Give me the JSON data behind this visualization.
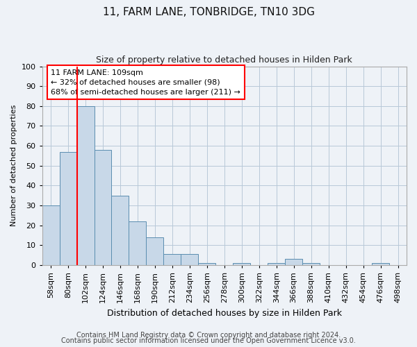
{
  "title": "11, FARM LANE, TONBRIDGE, TN10 3DG",
  "subtitle": "Size of property relative to detached houses in Hilden Park",
  "xlabel": "Distribution of detached houses by size in Hilden Park",
  "ylabel": "Number of detached properties",
  "categories": [
    "58sqm",
    "80sqm",
    "102sqm",
    "124sqm",
    "146sqm",
    "168sqm",
    "190sqm",
    "212sqm",
    "234sqm",
    "256sqm",
    "278sqm",
    "300sqm",
    "322sqm",
    "344sqm",
    "366sqm",
    "388sqm",
    "410sqm",
    "432sqm",
    "454sqm",
    "476sqm",
    "498sqm"
  ],
  "values": [
    30,
    57,
    80,
    58,
    35,
    22,
    14,
    5.5,
    5.5,
    1,
    0,
    1,
    0,
    1,
    3,
    1,
    0,
    0,
    0,
    1,
    0
  ],
  "bar_color": "#c8d8e8",
  "bar_edge_color": "#5a8db0",
  "vline_color": "red",
  "annotation_line1": "11 FARM LANE: 109sqm",
  "annotation_line2": "← 32% of detached houses are smaller (98)",
  "annotation_line3": "68% of semi-detached houses are larger (211) →",
  "annotation_box_color": "white",
  "annotation_box_edge_color": "red",
  "ylim": [
    0,
    100
  ],
  "yticks": [
    0,
    10,
    20,
    30,
    40,
    50,
    60,
    70,
    80,
    90,
    100
  ],
  "footer1": "Contains HM Land Registry data © Crown copyright and database right 2024.",
  "footer2": "Contains public sector information licensed under the Open Government Licence v3.0.",
  "background_color": "#eef2f7",
  "plot_bg_color": "#eef2f7",
  "grid_color": "#b8c8d8",
  "title_fontsize": 11,
  "subtitle_fontsize": 9,
  "xlabel_fontsize": 9,
  "ylabel_fontsize": 8,
  "tick_fontsize": 8,
  "footer_fontsize": 7,
  "annot_fontsize": 8
}
